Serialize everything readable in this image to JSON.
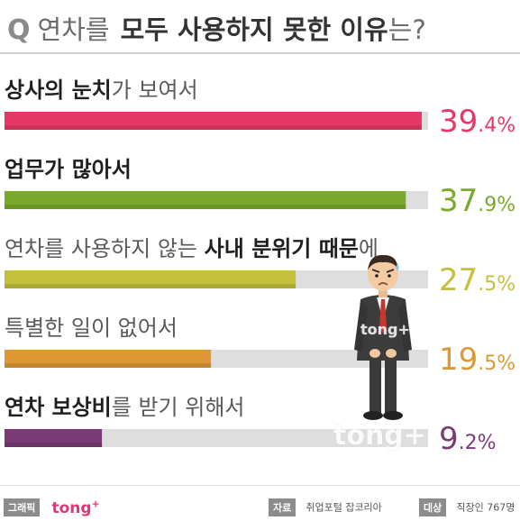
{
  "title": {
    "q": "Q",
    "part1": "연차를",
    "part2": "모두 사용하지 못한 이유",
    "part3": "는?"
  },
  "chart_data": {
    "type": "bar",
    "orientation": "horizontal",
    "title": "연차를 모두 사용하지 못한 이유는?",
    "xlim": [
      0,
      40
    ],
    "grid": false,
    "categories": [
      "상사의 눈치가 보여서",
      "업무가 많아서",
      "연차를 사용하지 않는 사내 분위기 때문에",
      "특별한 일이 없어서",
      "연차 보상비를 받기 위해서"
    ],
    "category_segments": [
      [
        {
          "text": "상사의 눈치",
          "bold": true
        },
        {
          "text": "가 보여서",
          "bold": false
        }
      ],
      [
        {
          "text": "업무가 많아서",
          "bold": true
        }
      ],
      [
        {
          "text": "연차를 사용하지 않는 ",
          "bold": false
        },
        {
          "text": "사내 분위기 때문",
          "bold": true
        },
        {
          "text": "에",
          "bold": false
        }
      ],
      [
        {
          "text": "특별한 일이 없어서",
          "bold": false
        }
      ],
      [
        {
          "text": "연차 보상비",
          "bold": true
        },
        {
          "text": "를 받기 위해서",
          "bold": false
        }
      ]
    ],
    "values": [
      39.4,
      37.9,
      27.5,
      19.5,
      9.2
    ],
    "value_labels": [
      {
        "big": "39",
        "small": ".4%"
      },
      {
        "big": "37",
        "small": ".9%"
      },
      {
        "big": "27",
        "small": ".5%"
      },
      {
        "big": "19",
        "small": ".5%"
      },
      {
        "big": "9",
        "small": ".2%"
      }
    ],
    "colors": [
      "#e63868",
      "#7aaa2c",
      "#c4c03e",
      "#df9836",
      "#7a3a75"
    ]
  },
  "watermarks": [
    "tong+",
    "tong+"
  ],
  "footer": {
    "credit_badge": "그래픽",
    "credit_logo": "tong",
    "credit_logo_sup": "+",
    "source_badge": "자료",
    "source_text": "취업포털 잡코리아",
    "target_badge": "대상",
    "target_text": "직장인 767명"
  }
}
